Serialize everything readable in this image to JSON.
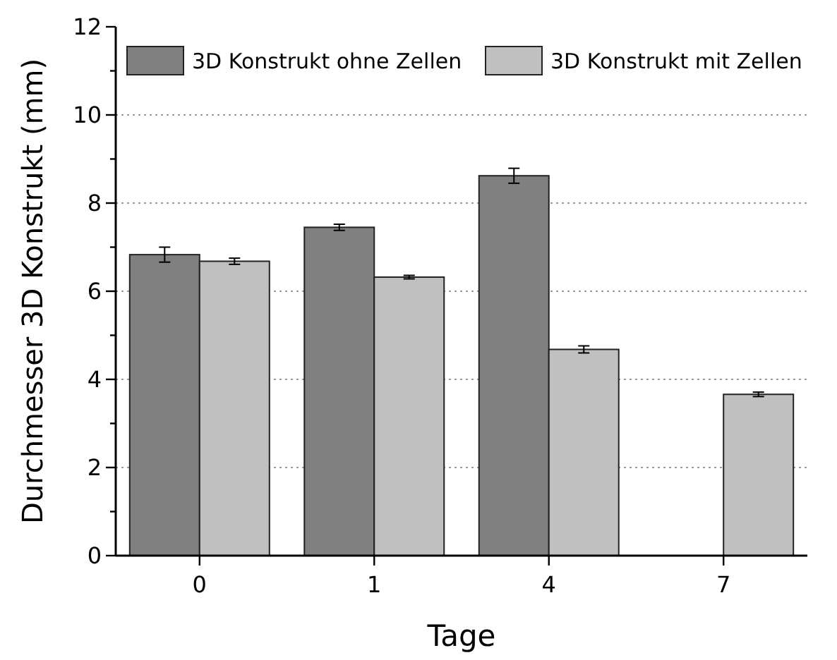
{
  "chart_data": {
    "type": "bar",
    "xlabel": "Tage",
    "ylabel": "Durchmesser 3D Konstrukt (mm)",
    "categories": [
      "0",
      "1",
      "4",
      "7"
    ],
    "series": [
      {
        "name": "3D Konstrukt ohne Zellen",
        "color": "#808080",
        "values": [
          6.83,
          7.45,
          8.62,
          null
        ],
        "errors": [
          0.17,
          0.07,
          0.17,
          null
        ]
      },
      {
        "name": "3D Konstrukt mit Zellen",
        "color": "#c0c0c0",
        "values": [
          6.68,
          6.32,
          4.68,
          3.66
        ],
        "errors": [
          0.07,
          0.04,
          0.08,
          0.05
        ]
      }
    ],
    "ylim": [
      0,
      12
    ],
    "yticks": [
      0,
      {
        "value": 1,
        "label": null
      },
      2,
      {
        "value": 3,
        "label": null
      },
      4,
      {
        "value": 5,
        "label": null
      },
      6,
      {
        "value": 7,
        "label": null
      },
      8,
      {
        "value": 9,
        "label": null
      },
      10,
      {
        "value": 11,
        "label": null
      },
      12
    ],
    "grid": "y",
    "legend": "top"
  }
}
